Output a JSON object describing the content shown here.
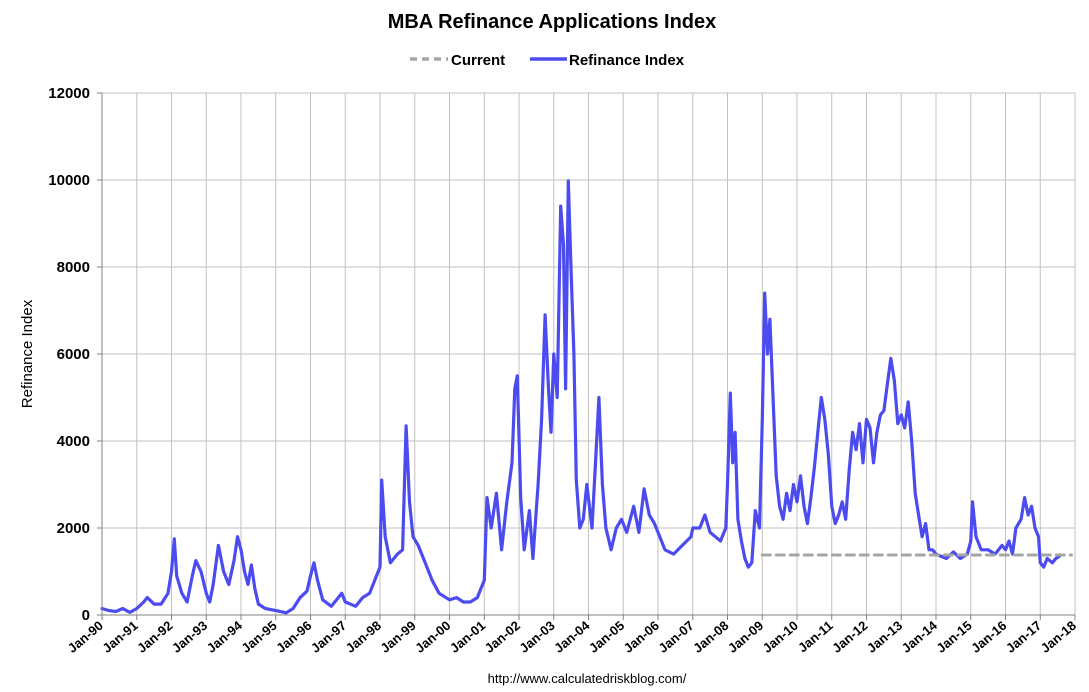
{
  "chart_data": {
    "type": "line",
    "title": "MBA Refinance Applications Index",
    "ylabel": "Refinance Index",
    "xlabel": "",
    "source": "http://www.calculatedriskblog.com/",
    "ylim": [
      0,
      12000
    ],
    "yticks": [
      0,
      2000,
      4000,
      6000,
      8000,
      10000,
      12000
    ],
    "xlim": [
      1990,
      2018
    ],
    "xticks": [
      "Jan-90",
      "Jan-91",
      "Jan-92",
      "Jan-93",
      "Jan-94",
      "Jan-95",
      "Jan-96",
      "Jan-97",
      "Jan-98",
      "Jan-99",
      "Jan-00",
      "Jan-01",
      "Jan-02",
      "Jan-03",
      "Jan-04",
      "Jan-05",
      "Jan-06",
      "Jan-07",
      "Jan-08",
      "Jan-09",
      "Jan-10",
      "Jan-11",
      "Jan-12",
      "Jan-13",
      "Jan-14",
      "Jan-15",
      "Jan-16",
      "Jan-17",
      "Jan-18"
    ],
    "grid": true,
    "legend_position": "top",
    "series": [
      {
        "name": "Current",
        "style": "dashed",
        "color": "#a6a6a6",
        "points": [
          [
            2009.0,
            1380
          ],
          [
            2017.9,
            1380
          ]
        ]
      },
      {
        "name": "Refinance Index",
        "style": "solid",
        "color": "#4b4bf0",
        "points": [
          [
            1990.0,
            150
          ],
          [
            1990.2,
            100
          ],
          [
            1990.4,
            80
          ],
          [
            1990.6,
            150
          ],
          [
            1990.8,
            60
          ],
          [
            1991.0,
            150
          ],
          [
            1991.2,
            300
          ],
          [
            1991.3,
            400
          ],
          [
            1991.5,
            250
          ],
          [
            1991.7,
            250
          ],
          [
            1991.9,
            500
          ],
          [
            1992.0,
            1000
          ],
          [
            1992.08,
            1750
          ],
          [
            1992.15,
            900
          ],
          [
            1992.3,
            500
          ],
          [
            1992.45,
            300
          ],
          [
            1992.6,
            900
          ],
          [
            1992.7,
            1250
          ],
          [
            1992.85,
            1000
          ],
          [
            1993.0,
            500
          ],
          [
            1993.1,
            300
          ],
          [
            1993.2,
            700
          ],
          [
            1993.35,
            1600
          ],
          [
            1993.5,
            1000
          ],
          [
            1993.65,
            700
          ],
          [
            1993.8,
            1250
          ],
          [
            1993.9,
            1800
          ],
          [
            1994.0,
            1500
          ],
          [
            1994.1,
            1000
          ],
          [
            1994.2,
            700
          ],
          [
            1994.3,
            1150
          ],
          [
            1994.4,
            600
          ],
          [
            1994.5,
            250
          ],
          [
            1994.7,
            150
          ],
          [
            1995.0,
            100
          ],
          [
            1995.3,
            50
          ],
          [
            1995.5,
            150
          ],
          [
            1995.7,
            400
          ],
          [
            1995.9,
            550
          ],
          [
            1996.0,
            900
          ],
          [
            1996.1,
            1200
          ],
          [
            1996.2,
            800
          ],
          [
            1996.35,
            350
          ],
          [
            1996.6,
            200
          ],
          [
            1996.9,
            500
          ],
          [
            1997.0,
            300
          ],
          [
            1997.3,
            200
          ],
          [
            1997.5,
            400
          ],
          [
            1997.7,
            500
          ],
          [
            1997.9,
            900
          ],
          [
            1998.0,
            1100
          ],
          [
            1998.05,
            3100
          ],
          [
            1998.15,
            1800
          ],
          [
            1998.3,
            1200
          ],
          [
            1998.5,
            1400
          ],
          [
            1998.65,
            1500
          ],
          [
            1998.75,
            4350
          ],
          [
            1998.85,
            2600
          ],
          [
            1998.95,
            1800
          ],
          [
            1999.1,
            1600
          ],
          [
            1999.3,
            1200
          ],
          [
            1999.5,
            800
          ],
          [
            1999.7,
            500
          ],
          [
            2000.0,
            350
          ],
          [
            2000.2,
            400
          ],
          [
            2000.4,
            300
          ],
          [
            2000.6,
            300
          ],
          [
            2000.8,
            400
          ],
          [
            2001.0,
            800
          ],
          [
            2001.08,
            2700
          ],
          [
            2001.2,
            2000
          ],
          [
            2001.35,
            2800
          ],
          [
            2001.5,
            1500
          ],
          [
            2001.65,
            2600
          ],
          [
            2001.8,
            3500
          ],
          [
            2001.88,
            5200
          ],
          [
            2001.95,
            5500
          ],
          [
            2002.05,
            2700
          ],
          [
            2002.15,
            1500
          ],
          [
            2002.3,
            2400
          ],
          [
            2002.4,
            1300
          ],
          [
            2002.55,
            3000
          ],
          [
            2002.65,
            4500
          ],
          [
            2002.75,
            6900
          ],
          [
            2002.85,
            5200
          ],
          [
            2002.92,
            4200
          ],
          [
            2003.0,
            6000
          ],
          [
            2003.1,
            5000
          ],
          [
            2003.2,
            9400
          ],
          [
            2003.28,
            8500
          ],
          [
            2003.34,
            5200
          ],
          [
            2003.42,
            9980
          ],
          [
            2003.5,
            7900
          ],
          [
            2003.58,
            6000
          ],
          [
            2003.65,
            3100
          ],
          [
            2003.75,
            2000
          ],
          [
            2003.85,
            2200
          ],
          [
            2003.95,
            3000
          ],
          [
            2004.1,
            2000
          ],
          [
            2004.2,
            3500
          ],
          [
            2004.3,
            5000
          ],
          [
            2004.4,
            3000
          ],
          [
            2004.5,
            2000
          ],
          [
            2004.65,
            1500
          ],
          [
            2004.8,
            2000
          ],
          [
            2004.95,
            2200
          ],
          [
            2005.1,
            1900
          ],
          [
            2005.3,
            2500
          ],
          [
            2005.45,
            1900
          ],
          [
            2005.6,
            2900
          ],
          [
            2005.75,
            2300
          ],
          [
            2005.9,
            2100
          ],
          [
            2006.0,
            1900
          ],
          [
            2006.2,
            1500
          ],
          [
            2006.45,
            1400
          ],
          [
            2006.7,
            1600
          ],
          [
            2006.95,
            1800
          ],
          [
            2007.0,
            2000
          ],
          [
            2007.2,
            2000
          ],
          [
            2007.35,
            2300
          ],
          [
            2007.5,
            1900
          ],
          [
            2007.65,
            1800
          ],
          [
            2007.8,
            1700
          ],
          [
            2007.95,
            2000
          ],
          [
            2008.0,
            3000
          ],
          [
            2008.08,
            5100
          ],
          [
            2008.15,
            3500
          ],
          [
            2008.22,
            4200
          ],
          [
            2008.3,
            2200
          ],
          [
            2008.4,
            1700
          ],
          [
            2008.5,
            1300
          ],
          [
            2008.6,
            1100
          ],
          [
            2008.7,
            1200
          ],
          [
            2008.8,
            2400
          ],
          [
            2008.92,
            2000
          ],
          [
            2009.0,
            4500
          ],
          [
            2009.07,
            7400
          ],
          [
            2009.15,
            6000
          ],
          [
            2009.22,
            6800
          ],
          [
            2009.3,
            5200
          ],
          [
            2009.4,
            3200
          ],
          [
            2009.5,
            2500
          ],
          [
            2009.6,
            2200
          ],
          [
            2009.7,
            2800
          ],
          [
            2009.8,
            2400
          ],
          [
            2009.9,
            3000
          ],
          [
            2010.0,
            2600
          ],
          [
            2010.1,
            3200
          ],
          [
            2010.2,
            2500
          ],
          [
            2010.3,
            2100
          ],
          [
            2010.4,
            2700
          ],
          [
            2010.5,
            3400
          ],
          [
            2010.6,
            4200
          ],
          [
            2010.7,
            5000
          ],
          [
            2010.8,
            4500
          ],
          [
            2010.9,
            3700
          ],
          [
            2011.0,
            2500
          ],
          [
            2011.1,
            2100
          ],
          [
            2011.2,
            2300
          ],
          [
            2011.3,
            2600
          ],
          [
            2011.4,
            2200
          ],
          [
            2011.5,
            3300
          ],
          [
            2011.6,
            4200
          ],
          [
            2011.7,
            3800
          ],
          [
            2011.8,
            4400
          ],
          [
            2011.9,
            3500
          ],
          [
            2012.0,
            4500
          ],
          [
            2012.1,
            4300
          ],
          [
            2012.2,
            3500
          ],
          [
            2012.3,
            4200
          ],
          [
            2012.4,
            4600
          ],
          [
            2012.5,
            4700
          ],
          [
            2012.6,
            5300
          ],
          [
            2012.7,
            5900
          ],
          [
            2012.8,
            5400
          ],
          [
            2012.9,
            4400
          ],
          [
            2013.0,
            4600
          ],
          [
            2013.1,
            4300
          ],
          [
            2013.2,
            4900
          ],
          [
            2013.3,
            4000
          ],
          [
            2013.4,
            2800
          ],
          [
            2013.5,
            2300
          ],
          [
            2013.6,
            1800
          ],
          [
            2013.7,
            2100
          ],
          [
            2013.8,
            1500
          ],
          [
            2013.9,
            1500
          ],
          [
            2014.0,
            1400
          ],
          [
            2014.3,
            1300
          ],
          [
            2014.5,
            1450
          ],
          [
            2014.7,
            1300
          ],
          [
            2014.9,
            1400
          ],
          [
            2015.0,
            1700
          ],
          [
            2015.05,
            2600
          ],
          [
            2015.15,
            1800
          ],
          [
            2015.3,
            1500
          ],
          [
            2015.5,
            1500
          ],
          [
            2015.7,
            1400
          ],
          [
            2015.9,
            1600
          ],
          [
            2016.0,
            1500
          ],
          [
            2016.1,
            1700
          ],
          [
            2016.2,
            1400
          ],
          [
            2016.3,
            2000
          ],
          [
            2016.45,
            2200
          ],
          [
            2016.55,
            2700
          ],
          [
            2016.65,
            2300
          ],
          [
            2016.75,
            2500
          ],
          [
            2016.85,
            2000
          ],
          [
            2016.95,
            1800
          ],
          [
            2017.0,
            1200
          ],
          [
            2017.1,
            1100
          ],
          [
            2017.2,
            1300
          ],
          [
            2017.35,
            1200
          ],
          [
            2017.45,
            1300
          ],
          [
            2017.55,
            1350
          ]
        ]
      }
    ]
  }
}
